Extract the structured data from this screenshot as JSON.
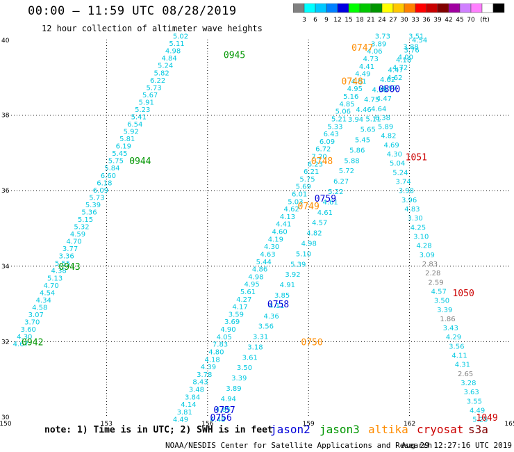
{
  "title": "00:00 – 11:59 UTC 08/28/2019",
  "subtitle": "12 hour collection of altimeter wave heights",
  "legend": {
    "colors": [
      "#808080",
      "#00ffff",
      "#00c8ff",
      "#0080ff",
      "#0000e0",
      "#00ff00",
      "#00c800",
      "#009600",
      "#ffff00",
      "#ffc800",
      "#ff8000",
      "#ff0000",
      "#c80000",
      "#800000",
      "#a000a0",
      "#d080ff",
      "#ff80ff",
      "#ffffff",
      "#000000"
    ],
    "labels": [
      "3",
      "6",
      "9",
      "12",
      "15",
      "18",
      "21",
      "24",
      "27",
      "30",
      "33",
      "36",
      "39",
      "42",
      "45",
      "70",
      "(ft)"
    ]
  },
  "note": "note: 1) Time is in UTC; 2) SWH is in feet",
  "satellites": [
    {
      "name": "jason2",
      "color": "#0000d8"
    },
    {
      "name": "jason3",
      "color": "#009600"
    },
    {
      "name": "altika",
      "color": "#ff8c00"
    },
    {
      "name": "cryosat",
      "color": "#cc0000"
    },
    {
      "name": "s3a",
      "color": "#800000"
    }
  ],
  "credit": "NOAA/NESDIS Center for Satellite Applications and Research",
  "timestamp": "Aug 29 12:27:16 UTC 2019",
  "chart_data": {
    "type": "scatter",
    "title": "00:00 – 11:59 UTC 08/28/2019",
    "xlim": [
      150,
      165
    ],
    "ylim": [
      30,
      40
    ],
    "xticks": [
      "150",
      "153",
      "156",
      "159",
      "162",
      "165"
    ],
    "yticks": [
      "30",
      "32",
      "34",
      "36",
      "38",
      "40"
    ],
    "grid": true,
    "value_color": "#00c8e0",
    "low_value_color": "#808080",
    "passes": [
      {
        "satellite": "jason3",
        "time_label": "0945",
        "label_pos": [
          156.8,
          39.6
        ]
      },
      {
        "satellite": "jason3",
        "time_label": "0944",
        "label_pos": [
          154.0,
          36.8
        ]
      },
      {
        "satellite": "jason3",
        "time_label": "0943",
        "label_pos": [
          151.9,
          34.0
        ]
      },
      {
        "satellite": "jason3",
        "time_label": "0942",
        "label_pos": [
          150.8,
          32.0
        ]
      },
      {
        "satellite": "altika",
        "time_label": "0747",
        "label_pos": [
          160.6,
          39.8
        ]
      },
      {
        "satellite": "altika",
        "time_label": "0748",
        "label_pos": [
          160.3,
          38.9
        ]
      },
      {
        "satellite": "altika",
        "time_label": "0748",
        "label_pos": [
          159.4,
          36.8
        ]
      },
      {
        "satellite": "altika",
        "time_label": "0749",
        "label_pos": [
          159.0,
          35.6
        ]
      },
      {
        "satellite": "altika",
        "time_label": "0750",
        "label_pos": [
          159.1,
          32.0
        ]
      },
      {
        "satellite": "jason2",
        "time_label": "0800",
        "label_pos": [
          161.4,
          38.7
        ]
      },
      {
        "satellite": "jason2",
        "time_label": "0759",
        "label_pos": [
          159.5,
          35.8
        ]
      },
      {
        "satellite": "jason2",
        "time_label": "0758",
        "label_pos": [
          158.1,
          33.0
        ]
      },
      {
        "satellite": "jason2",
        "time_label": "0757",
        "label_pos": [
          156.5,
          30.2
        ]
      },
      {
        "satellite": "jason2",
        "time_label": "0756",
        "label_pos": [
          156.4,
          30.0
        ]
      },
      {
        "satellite": "cryosat",
        "time_label": "1051",
        "label_pos": [
          162.2,
          36.9
        ]
      },
      {
        "satellite": "cryosat",
        "time_label": "1050",
        "label_pos": [
          163.6,
          33.3
        ]
      },
      {
        "satellite": "cryosat",
        "time_label": "1049",
        "label_pos": [
          164.3,
          30.0
        ]
      }
    ],
    "tracks": [
      {
        "name": "jason3_asc",
        "start": [
          150.45,
          31.95
        ],
        "end": [
          155.2,
          40.1
        ],
        "values": [
          "4.67",
          "4.30",
          "3.60",
          "3.70",
          "3.07",
          "4.58",
          "4.34",
          "4.54",
          "4.70",
          "5.13",
          "4.38",
          "5.55",
          "3.36",
          "3.77",
          "4.70",
          "4.59",
          "5.32",
          "5.15",
          "5.36",
          "5.39",
          "5.73",
          "6.09",
          "6.18",
          "6.60",
          "5.84",
          "5.75",
          "5.45",
          "6.19",
          "5.81",
          "5.92",
          "6.54",
          "5.41",
          "5.23",
          "5.91",
          "5.67",
          "5.73",
          "6.22",
          "5.82",
          "5.24",
          "4.84",
          "4.98",
          "5.11",
          "5.02"
        ]
      },
      {
        "name": "altika_a",
        "start": [
          155.2,
          29.95
        ],
        "end": [
          161.2,
          40.1
        ],
        "values": [
          "4.49",
          "3.81",
          "4.14",
          "3.84",
          "3.48",
          "8.43",
          "3.78",
          "4.39",
          "4.18",
          "4.80",
          "7.83",
          "4.05",
          "4.90",
          "3.69",
          "3.59",
          "4.17",
          "4.27",
          "5.61",
          "4.95",
          "4.98",
          "4.86",
          "5.44",
          "4.63",
          "4.30",
          "4.19",
          "4.60",
          "4.41",
          "4.13",
          "4.62",
          "5.03",
          "6.01",
          "5.69",
          "5.75",
          "6.21",
          "6.23",
          "7.20",
          "6.72",
          "6.09",
          "6.43",
          "5.33",
          "5.21",
          "5.06",
          "4.85",
          "5.16",
          "4.95",
          "4.61",
          "4.49",
          "4.41",
          "4.73",
          "4.06",
          "3.89",
          "3.73"
        ]
      },
      {
        "name": "altika_b",
        "start": [
          156.3,
          29.95
        ],
        "end": [
          162.2,
          40.1
        ],
        "values": [
          "4.48",
          "4.85",
          "4.94",
          "3.89",
          "3.39",
          "3.50",
          "3.61",
          "3.18",
          "3.31",
          "3.56",
          "4.36",
          "4.11",
          "3.85",
          "4.91",
          "3.92",
          "5.39",
          "5.10",
          "4.98",
          "4.82",
          "4.57",
          "4.61",
          "4.61",
          "5.22",
          "6.27",
          "5.72",
          "5.88",
          "5.86",
          "5.45",
          "5.65",
          "5.11",
          "4.64",
          "4.47",
          "4.97",
          "4.62",
          "4.72",
          "4.00",
          "3.88",
          "3.51"
        ]
      },
      {
        "name": "jason2_desc",
        "start": [
          162.3,
          40.0
        ],
        "end": [
          160.4,
          37.9
        ],
        "values": [
          "4.54",
          "3.76",
          "4.18",
          "4.47",
          "4.62",
          "4.38",
          "4.75",
          "4.46",
          "3.94"
        ]
      },
      {
        "name": "cryosat_desc",
        "start": [
          161.2,
          37.95
        ],
        "end": [
          164.1,
          29.95
        ],
        "values": [
          "6.38",
          "5.89",
          "4.82",
          "4.69",
          "4.30",
          "5.04",
          "5.24",
          "3.74",
          "3.98",
          "3.96",
          "4.83",
          "3.30",
          "4.25",
          "3.10",
          "4.28",
          "3.09",
          "2.83",
          "2.28",
          "2.59",
          "4.57",
          "3.50",
          "3.39",
          "1.86",
          "3.43",
          "4.29",
          "3.56",
          "4.11",
          "4.31",
          "2.65",
          "3.28",
          "3.63",
          "3.55",
          "4.49",
          "5.25"
        ]
      }
    ]
  }
}
